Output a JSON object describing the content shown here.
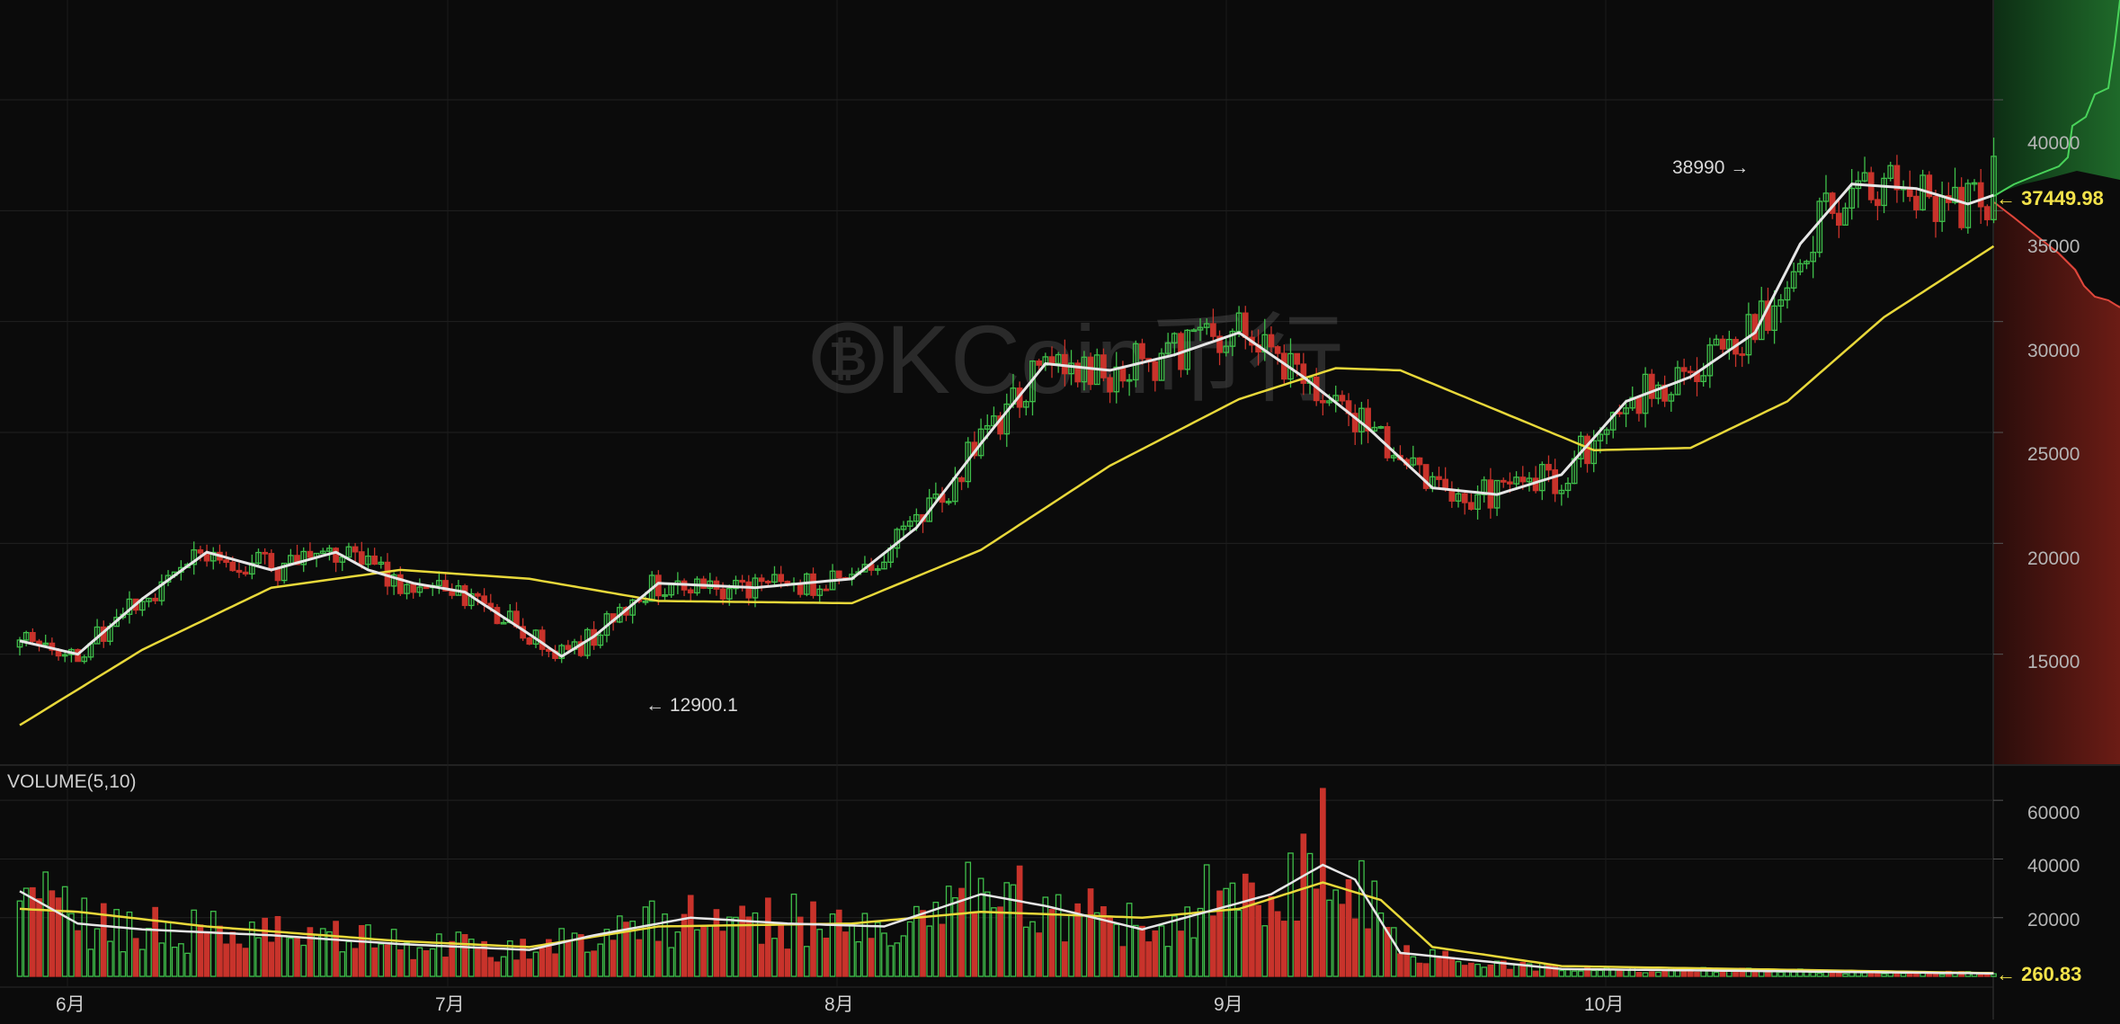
{
  "chart_data": {
    "type": "candlestick",
    "watermark": "OKCoin币行",
    "colors": {
      "background": "#0b0b0b",
      "grid": "#222222",
      "up": "#3fbf4a",
      "down": "#c8332b",
      "ma_fast": "#e6e6e6",
      "ma_slow": "#e8d83a",
      "axis_text": "#b5b5b5",
      "price_label": "#f2e24a"
    },
    "x_labels": [
      "6月",
      "7月",
      "8月",
      "9月",
      "10月"
    ],
    "price_axis": {
      "ticks": [
        "15000",
        "20000",
        "25000",
        "30000",
        "35000",
        "40000"
      ],
      "ylim": [
        10000,
        44500
      ]
    },
    "volume_axis": {
      "label": "VOLUME(5,10)",
      "ticks": [
        "20000",
        "40000",
        "60000"
      ],
      "ylim": [
        0,
        72000
      ]
    },
    "annotations": {
      "high": "38990 →",
      "low": "← 12900.1",
      "last_price": "← 37449.98",
      "last_volume": "← 260.83"
    },
    "price_ma_fast": [
      [
        1,
        15600
      ],
      [
        10,
        15000
      ],
      [
        20,
        17500
      ],
      [
        30,
        19600
      ],
      [
        40,
        18800
      ],
      [
        50,
        19600
      ],
      [
        55,
        18800
      ],
      [
        62,
        18200
      ],
      [
        70,
        17800
      ],
      [
        80,
        15900
      ],
      [
        85,
        14900
      ],
      [
        90,
        15800
      ],
      [
        100,
        18200
      ],
      [
        115,
        18000
      ],
      [
        130,
        18400
      ],
      [
        140,
        20700
      ],
      [
        150,
        24500
      ],
      [
        160,
        28100
      ],
      [
        170,
        27800
      ],
      [
        180,
        28500
      ],
      [
        190,
        29500
      ],
      [
        200,
        27500
      ],
      [
        210,
        25200
      ],
      [
        220,
        22500
      ],
      [
        230,
        22200
      ],
      [
        240,
        23100
      ],
      [
        250,
        26400
      ],
      [
        260,
        27500
      ],
      [
        270,
        29500
      ],
      [
        277,
        33500
      ],
      [
        285,
        36200
      ],
      [
        295,
        36000
      ],
      [
        303,
        35300
      ],
      [
        307,
        35700
      ]
    ],
    "price_ma_slow": [
      [
        1,
        11800
      ],
      [
        20,
        15200
      ],
      [
        40,
        18000
      ],
      [
        60,
        18800
      ],
      [
        80,
        18400
      ],
      [
        100,
        17400
      ],
      [
        130,
        17300
      ],
      [
        150,
        19700
      ],
      [
        170,
        23500
      ],
      [
        190,
        26500
      ],
      [
        205,
        27900
      ],
      [
        215,
        27800
      ],
      [
        230,
        26000
      ],
      [
        245,
        24200
      ],
      [
        260,
        24300
      ],
      [
        275,
        26400
      ],
      [
        290,
        30200
      ],
      [
        307,
        33400
      ]
    ],
    "volume_ma_fast": [
      [
        1,
        29000
      ],
      [
        10,
        18000
      ],
      [
        20,
        16000
      ],
      [
        40,
        14000
      ],
      [
        60,
        11000
      ],
      [
        80,
        9000
      ],
      [
        90,
        14000
      ],
      [
        105,
        20000
      ],
      [
        120,
        18000
      ],
      [
        135,
        17000
      ],
      [
        150,
        28000
      ],
      [
        160,
        24000
      ],
      [
        175,
        16000
      ],
      [
        185,
        22000
      ],
      [
        195,
        28000
      ],
      [
        203,
        38000
      ],
      [
        208,
        33000
      ],
      [
        215,
        8000
      ],
      [
        240,
        2500
      ],
      [
        307,
        1000
      ]
    ],
    "volume_ma_slow": [
      [
        1,
        23000
      ],
      [
        10,
        22000
      ],
      [
        30,
        17000
      ],
      [
        60,
        12000
      ],
      [
        80,
        10000
      ],
      [
        100,
        17000
      ],
      [
        130,
        18000
      ],
      [
        150,
        22000
      ],
      [
        175,
        20000
      ],
      [
        190,
        23000
      ],
      [
        203,
        32000
      ],
      [
        212,
        26000
      ],
      [
        220,
        10000
      ],
      [
        240,
        3500
      ],
      [
        307,
        1100
      ]
    ]
  }
}
